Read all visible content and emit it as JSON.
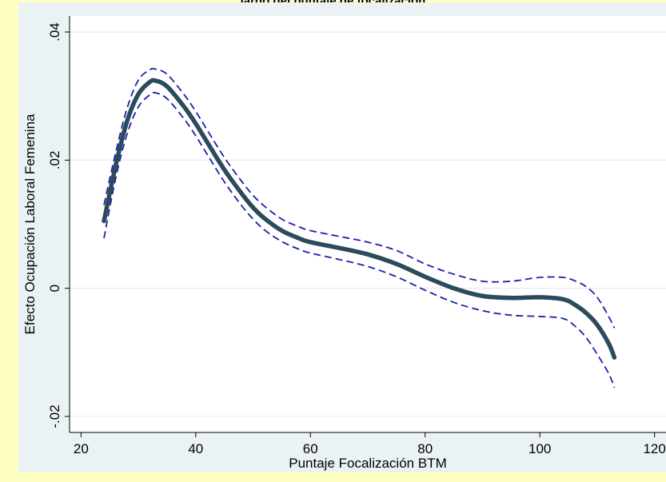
{
  "title": "largo del puntaje de focalización",
  "chart_data": {
    "type": "line",
    "xlabel": "Puntaje Focalización BTM",
    "ylabel": "Efecto Ocupación Laboral Femenina",
    "xlim": [
      18,
      122
    ],
    "ylim": [
      -0.0225,
      0.0425
    ],
    "x_ticks": [
      20,
      40,
      60,
      80,
      100,
      120
    ],
    "x_tick_labels": [
      "20",
      "40",
      "60",
      "80",
      "100",
      "120"
    ],
    "y_ticks": [
      -0.02,
      0,
      0.02,
      0.04
    ],
    "y_tick_labels": [
      "-.02",
      "0",
      ".02",
      ".04"
    ],
    "grid": true,
    "series": [
      {
        "role": "estimate",
        "color": "#2b4a5c",
        "style": "solid",
        "x": [
          24,
          26,
          28,
          30,
          32,
          33,
          35,
          38,
          40,
          42,
          45,
          48,
          50,
          52,
          55,
          58,
          60,
          65,
          70,
          75,
          80,
          85,
          90,
          95,
          100,
          104,
          106,
          108,
          110,
          112,
          113
        ],
        "y": [
          0.0105,
          0.019,
          0.026,
          0.0303,
          0.0322,
          0.0324,
          0.0315,
          0.0283,
          0.0257,
          0.0228,
          0.0185,
          0.0148,
          0.0126,
          0.0109,
          0.009,
          0.0078,
          0.0072,
          0.0063,
          0.0053,
          0.0038,
          0.0018,
          0.0,
          -0.0012,
          -0.0015,
          -0.0014,
          -0.0017,
          -0.0025,
          -0.0038,
          -0.0057,
          -0.0086,
          -0.0108
        ]
      },
      {
        "role": "upper-bound",
        "color": "#1f1fa8",
        "style": "dashed",
        "x": [
          24,
          26,
          28,
          30,
          32,
          33,
          35,
          38,
          40,
          42,
          45,
          48,
          50,
          52,
          55,
          58,
          60,
          65,
          70,
          75,
          80,
          85,
          90,
          95,
          100,
          104,
          106,
          108,
          110,
          112,
          113
        ],
        "y": [
          0.013,
          0.021,
          0.028,
          0.0325,
          0.0341,
          0.0342,
          0.0334,
          0.0302,
          0.0276,
          0.0247,
          0.0204,
          0.0167,
          0.0145,
          0.0128,
          0.0108,
          0.0096,
          0.009,
          0.0081,
          0.0072,
          0.0059,
          0.0038,
          0.0022,
          0.0011,
          0.0011,
          0.0017,
          0.0017,
          0.0012,
          0.0003,
          -0.0014,
          -0.0044,
          -0.0062
        ]
      },
      {
        "role": "lower-bound",
        "color": "#1f1fa8",
        "style": "dashed",
        "x": [
          24,
          26,
          28,
          30,
          32,
          33,
          35,
          38,
          40,
          42,
          45,
          48,
          50,
          52,
          55,
          58,
          60,
          65,
          70,
          75,
          80,
          85,
          90,
          95,
          100,
          104,
          106,
          108,
          110,
          112,
          113
        ],
        "y": [
          0.0078,
          0.017,
          0.024,
          0.0283,
          0.0302,
          0.0305,
          0.0296,
          0.0264,
          0.0238,
          0.0209,
          0.0166,
          0.0129,
          0.0108,
          0.0091,
          0.0073,
          0.0061,
          0.0055,
          0.0045,
          0.0034,
          0.0018,
          -0.0003,
          -0.0022,
          -0.0035,
          -0.0042,
          -0.0044,
          -0.0047,
          -0.0058,
          -0.0076,
          -0.0103,
          -0.0133,
          -0.0155
        ]
      }
    ]
  }
}
